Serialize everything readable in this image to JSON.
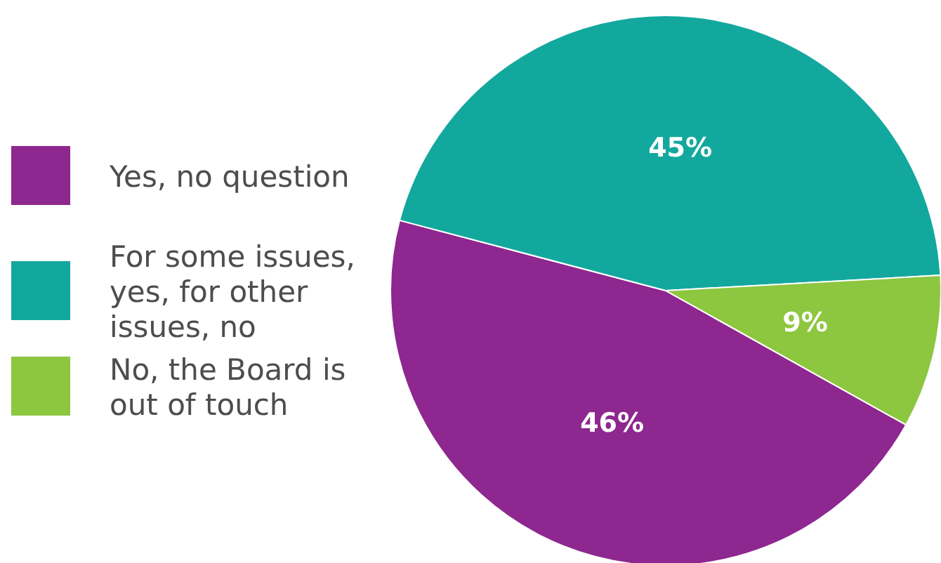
{
  "chart_data": {
    "type": "pie",
    "categories": [
      "Yes, no question",
      "For some issues, yes, for other issues, no",
      "No, the Board is out of touch"
    ],
    "values": [
      46,
      45,
      9
    ],
    "colors": [
      "#8e278f",
      "#13a89e",
      "#8dc63f"
    ],
    "value_labels": [
      "46%",
      "45%",
      "9%"
    ],
    "legend": "left"
  }
}
